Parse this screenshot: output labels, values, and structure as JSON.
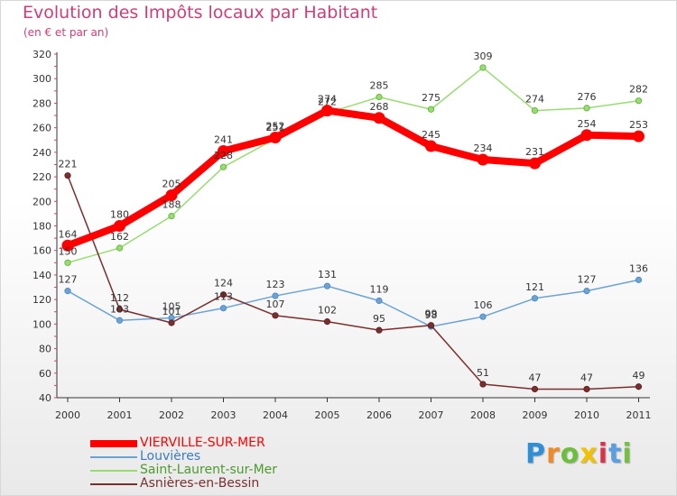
{
  "header": {
    "title": "Evolution des Impôts locaux par Habitant",
    "subtitle": "(en € et par an)"
  },
  "logo": {
    "text": "Proxiti",
    "colors": [
      "#2e8fd8",
      "#f08a24",
      "#6cbf3a",
      "#f2c200",
      "#d9304c",
      "#5aa0e0",
      "#74c043"
    ]
  },
  "chart_data": {
    "type": "line",
    "title": "Evolution des Impôts locaux par Habitant",
    "subtitle": "(en € et par an)",
    "x": [
      "2000",
      "2001",
      "2002",
      "2003",
      "2004",
      "2005",
      "2006",
      "2007",
      "2008",
      "2009",
      "2010",
      "2011"
    ],
    "yticks": [
      "40",
      "60",
      "80",
      "100",
      "120",
      "140",
      "160",
      "180",
      "200",
      "220",
      "240",
      "260",
      "280",
      "300",
      "320"
    ],
    "ylim": [
      40,
      320
    ],
    "grid": false,
    "legend": "bottom-left",
    "series": [
      {
        "name": "VIERVILLE-SUR-MER",
        "color": "#ff0000",
        "values": [
          164,
          180,
          205,
          241,
          252,
          274,
          268,
          245,
          234,
          231,
          254,
          253
        ],
        "labels": [
          "164",
          "180",
          "205",
          "241",
          "252",
          "274",
          "268",
          "245",
          "234",
          "231",
          "254",
          "253"
        ]
      },
      {
        "name": "Louvières",
        "color": "#6aa3d4",
        "values": [
          127,
          103,
          105,
          113,
          123,
          131,
          119,
          98,
          106,
          121,
          127,
          136
        ],
        "labels": [
          "127",
          "103",
          "105",
          "113",
          "123",
          "131",
          "119",
          "98",
          "106",
          "121",
          "127",
          "136"
        ]
      },
      {
        "name": "Saint-Laurent-sur-Mer",
        "color": "#98dc72",
        "values": [
          150,
          162,
          188,
          228,
          251,
          272,
          285,
          275,
          309,
          274,
          276,
          282
        ],
        "labels": [
          "150",
          "162",
          "188",
          "228",
          "251",
          "272",
          "285",
          "275",
          "309",
          "274",
          "276",
          "282"
        ]
      },
      {
        "name": "Asnières-en-Bessin",
        "color": "#7a2e2e",
        "values": [
          221,
          112,
          101,
          124,
          107,
          102,
          95,
          99,
          51,
          47,
          47,
          49
        ],
        "labels": [
          "221",
          "112",
          "101",
          "124",
          "107",
          "102",
          "95",
          "99",
          "51",
          "47",
          "47",
          "49"
        ]
      }
    ]
  }
}
